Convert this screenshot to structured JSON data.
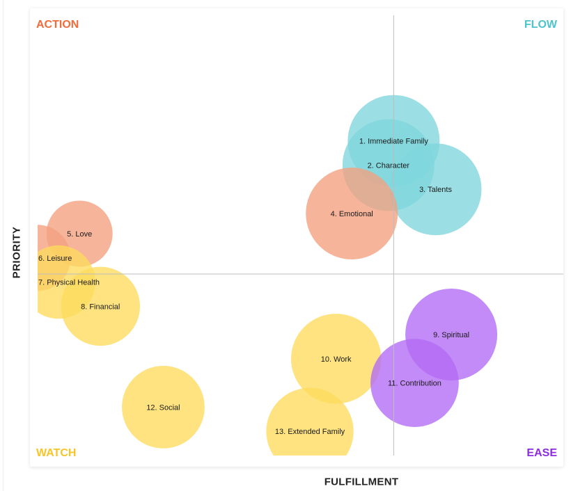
{
  "chart_data": {
    "type": "bubble",
    "xlabel": "FULFILLMENT",
    "ylabel": "PRIORITY",
    "xlim": [
      0,
      10
    ],
    "ylim": [
      0,
      10
    ],
    "dividers": {
      "x": 6.8,
      "y": 4.5
    },
    "quadrants": [
      {
        "label": "ACTION",
        "position": "top-left",
        "color": "#f26b3a"
      },
      {
        "label": "FLOW",
        "position": "top-right",
        "color": "#4cc4cc"
      },
      {
        "label": "WATCH",
        "position": "bottom-left",
        "color": "#f7c429"
      },
      {
        "label": "EASE",
        "position": "bottom-right",
        "color": "#8c2be0"
      }
    ],
    "palette": {
      "flow": "#7fd6dc",
      "action": "#f4a07f",
      "watch": "#fedb5c",
      "ease": "#b26af5"
    },
    "points": [
      {
        "label": "1. Immediate Family",
        "x": 6.8,
        "y": 7.8,
        "size": 1.0,
        "group": "flow"
      },
      {
        "label": "2. Character",
        "x": 6.7,
        "y": 7.2,
        "size": 1.0,
        "group": "flow"
      },
      {
        "label": "3. Talents",
        "x": 7.6,
        "y": 6.6,
        "size": 1.0,
        "group": "flow"
      },
      {
        "label": "4. Emotional",
        "x": 6.0,
        "y": 6.0,
        "size": 1.0,
        "group": "action"
      },
      {
        "label": "5. Love",
        "x": 0.8,
        "y": 5.5,
        "size": 0.72,
        "group": "action"
      },
      {
        "label": "6. Leisure",
        "x": 0.0,
        "y": 4.9,
        "size": 0.72,
        "group": "action"
      },
      {
        "label": "7. Physical Health",
        "x": 0.4,
        "y": 4.3,
        "size": 0.8,
        "group": "watch"
      },
      {
        "label": "8. Financial",
        "x": 1.2,
        "y": 3.7,
        "size": 0.86,
        "group": "watch"
      },
      {
        "label": "9. Spiritual",
        "x": 7.9,
        "y": 3.0,
        "size": 1.0,
        "group": "ease"
      },
      {
        "label": "10. Work",
        "x": 5.7,
        "y": 2.4,
        "size": 0.98,
        "group": "watch"
      },
      {
        "label": "11. Contribution",
        "x": 7.2,
        "y": 1.8,
        "size": 0.96,
        "group": "ease"
      },
      {
        "label": "12. Social",
        "x": 2.4,
        "y": 1.2,
        "size": 0.9,
        "group": "watch"
      },
      {
        "label": "13. Extended Family",
        "x": 5.2,
        "y": 0.6,
        "size": 0.95,
        "group": "watch"
      }
    ]
  }
}
